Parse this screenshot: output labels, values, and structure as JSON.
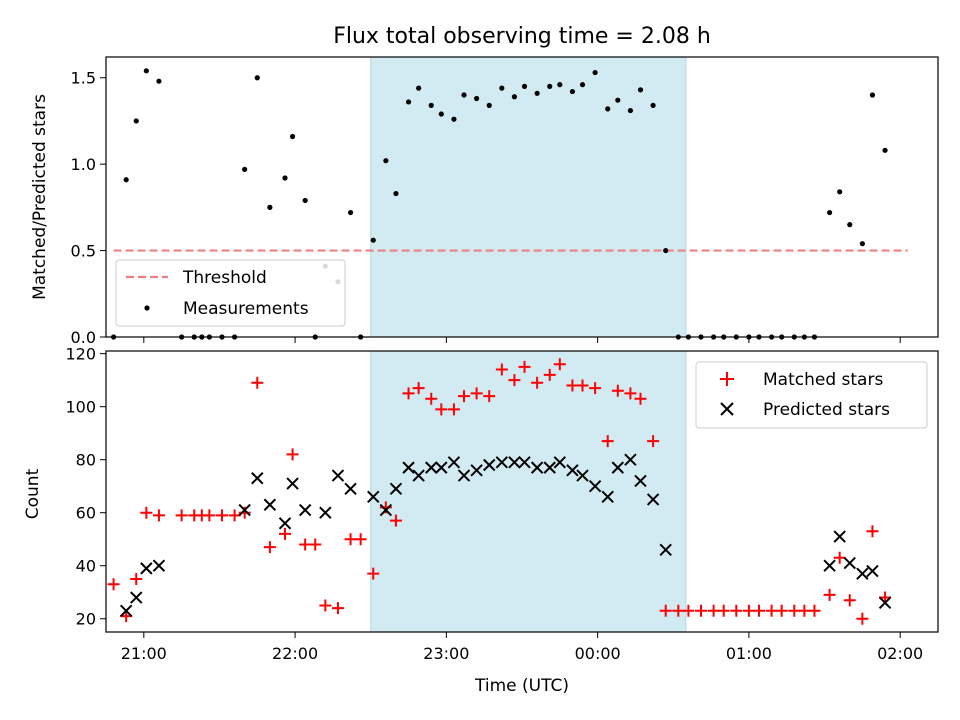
{
  "chart_data": [
    {
      "type": "scatter",
      "title": "Flux total observing time = 2.08 h",
      "xlabel": "",
      "ylabel": "Matched/Predicted stars",
      "ylim": [
        0,
        1.62
      ],
      "xlim": [
        "20:45",
        "02:15"
      ],
      "yticks": [
        "0.0",
        "0.5",
        "1.0",
        "1.5"
      ],
      "highlight_span": {
        "from": "22:30",
        "to": "00:35",
        "color": "#add8e6"
      },
      "legend_position": "lower-left",
      "threshold": {
        "name": "Threshold",
        "value": 0.5,
        "x_from": "20:48",
        "x_to": "02:03",
        "color": "#f08080"
      },
      "series": [
        {
          "name": "Measurements",
          "color": "#000000",
          "marker": "dot",
          "points": [
            [
              "20:48",
              0.0
            ],
            [
              "20:53",
              0.91
            ],
            [
              "20:57",
              1.25
            ],
            [
              "21:01",
              1.54
            ],
            [
              "21:06",
              1.48
            ],
            [
              "21:15",
              0.0
            ],
            [
              "21:20",
              0.0
            ],
            [
              "21:23",
              0.0
            ],
            [
              "21:26",
              0.0
            ],
            [
              "21:31",
              0.0
            ],
            [
              "21:36",
              0.0
            ],
            [
              "21:40",
              0.97
            ],
            [
              "21:45",
              1.5
            ],
            [
              "21:50",
              0.75
            ],
            [
              "21:56",
              0.92
            ],
            [
              "21:59",
              1.16
            ],
            [
              "22:04",
              0.79
            ],
            [
              "22:08",
              0.0
            ],
            [
              "22:12",
              0.41
            ],
            [
              "22:17",
              0.32
            ],
            [
              "22:22",
              0.72
            ],
            [
              "22:26",
              0.0
            ],
            [
              "22:31",
              0.56
            ],
            [
              "22:36",
              1.02
            ],
            [
              "22:40",
              0.83
            ],
            [
              "22:45",
              1.36
            ],
            [
              "22:49",
              1.44
            ],
            [
              "22:54",
              1.34
            ],
            [
              "22:58",
              1.29
            ],
            [
              "23:03",
              1.26
            ],
            [
              "23:07",
              1.4
            ],
            [
              "23:12",
              1.38
            ],
            [
              "23:17",
              1.34
            ],
            [
              "23:22",
              1.44
            ],
            [
              "23:27",
              1.39
            ],
            [
              "23:31",
              1.45
            ],
            [
              "23:36",
              1.41
            ],
            [
              "23:41",
              1.45
            ],
            [
              "23:45",
              1.46
            ],
            [
              "23:50",
              1.42
            ],
            [
              "23:54",
              1.46
            ],
            [
              "23:59",
              1.53
            ],
            [
              "00:04",
              1.32
            ],
            [
              "00:08",
              1.37
            ],
            [
              "00:13",
              1.31
            ],
            [
              "00:17",
              1.43
            ],
            [
              "00:22",
              1.34
            ],
            [
              "00:27",
              0.5
            ],
            [
              "00:32",
              0.0
            ],
            [
              "00:36",
              0.0
            ],
            [
              "00:41",
              0.0
            ],
            [
              "00:46",
              0.0
            ],
            [
              "00:50",
              0.0
            ],
            [
              "00:55",
              0.0
            ],
            [
              "01:00",
              0.0
            ],
            [
              "01:04",
              0.0
            ],
            [
              "01:09",
              0.0
            ],
            [
              "01:13",
              0.0
            ],
            [
              "01:18",
              0.0
            ],
            [
              "01:22",
              0.0
            ],
            [
              "01:26",
              0.0
            ],
            [
              "01:32",
              0.72
            ],
            [
              "01:36",
              0.84
            ],
            [
              "01:40",
              0.65
            ],
            [
              "01:45",
              0.54
            ],
            [
              "01:49",
              1.4
            ],
            [
              "01:54",
              1.08
            ]
          ]
        }
      ]
    },
    {
      "type": "scatter",
      "title": "",
      "xlabel": "Time (UTC)",
      "ylabel": "Count",
      "ylim": [
        15,
        121
      ],
      "xlim": [
        "20:45",
        "02:15"
      ],
      "yticks": [
        "20",
        "40",
        "60",
        "80",
        "100",
        "120"
      ],
      "xticks": [
        "21:00",
        "22:00",
        "23:00",
        "00:00",
        "01:00",
        "02:00"
      ],
      "highlight_span": {
        "from": "22:30",
        "to": "00:35",
        "color": "#add8e6"
      },
      "legend_position": "upper-right",
      "series": [
        {
          "name": "Matched stars",
          "color": "#ff0000",
          "marker": "plus",
          "points": [
            [
              "20:48",
              33
            ],
            [
              "20:53",
              21
            ],
            [
              "20:57",
              35
            ],
            [
              "21:01",
              60
            ],
            [
              "21:06",
              59
            ],
            [
              "21:15",
              59
            ],
            [
              "21:20",
              59
            ],
            [
              "21:23",
              59
            ],
            [
              "21:26",
              59
            ],
            [
              "21:31",
              59
            ],
            [
              "21:36",
              59
            ],
            [
              "21:40",
              60
            ],
            [
              "21:45",
              109
            ],
            [
              "21:50",
              47
            ],
            [
              "21:56",
              52
            ],
            [
              "21:59",
              82
            ],
            [
              "22:04",
              48
            ],
            [
              "22:08",
              48
            ],
            [
              "22:12",
              25
            ],
            [
              "22:17",
              24
            ],
            [
              "22:22",
              50
            ],
            [
              "22:26",
              50
            ],
            [
              "22:31",
              37
            ],
            [
              "22:36",
              62
            ],
            [
              "22:40",
              57
            ],
            [
              "22:45",
              105
            ],
            [
              "22:49",
              107
            ],
            [
              "22:54",
              103
            ],
            [
              "22:58",
              99
            ],
            [
              "23:03",
              99
            ],
            [
              "23:07",
              104
            ],
            [
              "23:12",
              105
            ],
            [
              "23:17",
              104
            ],
            [
              "23:22",
              114
            ],
            [
              "23:27",
              110
            ],
            [
              "23:31",
              115
            ],
            [
              "23:36",
              109
            ],
            [
              "23:41",
              112
            ],
            [
              "23:45",
              116
            ],
            [
              "23:50",
              108
            ],
            [
              "23:54",
              108
            ],
            [
              "23:59",
              107
            ],
            [
              "00:04",
              87
            ],
            [
              "00:08",
              106
            ],
            [
              "00:13",
              105
            ],
            [
              "00:17",
              103
            ],
            [
              "00:22",
              87
            ],
            [
              "00:27",
              23
            ],
            [
              "00:32",
              23
            ],
            [
              "00:36",
              23
            ],
            [
              "00:41",
              23
            ],
            [
              "00:46",
              23
            ],
            [
              "00:50",
              23
            ],
            [
              "00:55",
              23
            ],
            [
              "01:00",
              23
            ],
            [
              "01:04",
              23
            ],
            [
              "01:09",
              23
            ],
            [
              "01:13",
              23
            ],
            [
              "01:18",
              23
            ],
            [
              "01:22",
              23
            ],
            [
              "01:26",
              23
            ],
            [
              "01:32",
              29
            ],
            [
              "01:36",
              43
            ],
            [
              "01:40",
              27
            ],
            [
              "01:45",
              20
            ],
            [
              "01:49",
              53
            ],
            [
              "01:54",
              28
            ]
          ]
        },
        {
          "name": "Predicted stars",
          "color": "#000000",
          "marker": "x",
          "points": [
            [
              "20:53",
              23
            ],
            [
              "20:57",
              28
            ],
            [
              "21:01",
              39
            ],
            [
              "21:06",
              40
            ],
            [
              "21:40",
              61
            ],
            [
              "21:45",
              73
            ],
            [
              "21:50",
              63
            ],
            [
              "21:56",
              56
            ],
            [
              "21:59",
              71
            ],
            [
              "22:04",
              61
            ],
            [
              "22:12",
              60
            ],
            [
              "22:17",
              74
            ],
            [
              "22:22",
              69
            ],
            [
              "22:31",
              66
            ],
            [
              "22:36",
              61
            ],
            [
              "22:40",
              69
            ],
            [
              "22:45",
              77
            ],
            [
              "22:49",
              74
            ],
            [
              "22:54",
              77
            ],
            [
              "22:58",
              77
            ],
            [
              "23:03",
              79
            ],
            [
              "23:07",
              74
            ],
            [
              "23:12",
              76
            ],
            [
              "23:17",
              78
            ],
            [
              "23:22",
              79
            ],
            [
              "23:27",
              79
            ],
            [
              "23:31",
              79
            ],
            [
              "23:36",
              77
            ],
            [
              "23:41",
              77
            ],
            [
              "23:45",
              79
            ],
            [
              "23:50",
              76
            ],
            [
              "23:54",
              74
            ],
            [
              "23:59",
              70
            ],
            [
              "00:04",
              66
            ],
            [
              "00:08",
              77
            ],
            [
              "00:13",
              80
            ],
            [
              "00:17",
              72
            ],
            [
              "00:22",
              65
            ],
            [
              "00:27",
              46
            ],
            [
              "01:32",
              40
            ],
            [
              "01:36",
              51
            ],
            [
              "01:40",
              41
            ],
            [
              "01:45",
              37
            ],
            [
              "01:49",
              38
            ],
            [
              "01:54",
              26
            ]
          ]
        }
      ]
    }
  ]
}
